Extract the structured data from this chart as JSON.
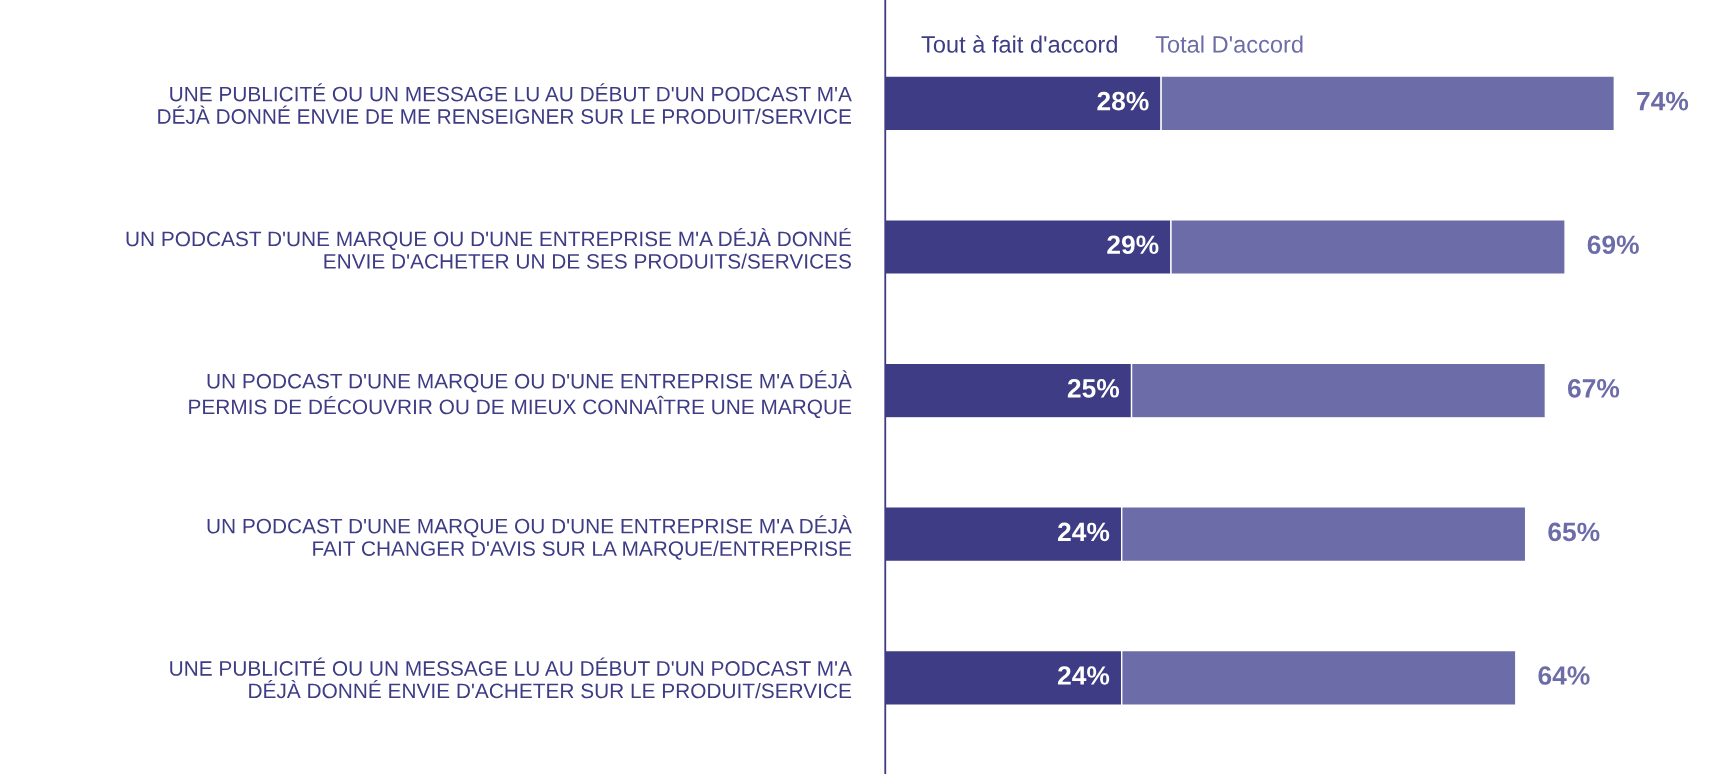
{
  "chart_data": {
    "type": "bar",
    "orientation": "horizontal",
    "stacked": true,
    "totals": [
      "74%",
      "69%",
      "67%",
      "65%",
      "64%"
    ],
    "legend": "top left",
    "tick_labels": "y",
    "grid": false,
    "categories": [
      "UNE PUBLICITÉ OU UN MESSAGE LU AU DÉBUT D'UN PODCAST M'A\nDÉJÀ DONNÉ ENVIE DE ME RENSEIGNER SUR LE PRODUIT/SERVICE",
      "UN PODCAST D'UNE MARQUE OU D'UNE ENTREPRISE M'A DÉJÀ DONNÉ\nENVIE D'ACHETER UN DE SES PRODUITS/SERVICES",
      "UN PODCAST D'UNE MARQUE OU D'UNE ENTREPRISE M'A DÉJÀ\nPERMIS DE DÉCOUVRIR OU DE MIEUX CONNAÎTRE UNE MARQUE",
      "UN PODCAST D'UNE MARQUE OU D'UNE ENTREPRISE M'A DÉJÀ\nFAIT CHANGER D'AVIS SUR LA MARQUE/ENTREPRISE",
      "UNE PUBLICITÉ OU UN MESSAGE LU AU DÉBUT D'UN PODCAST M'A\nDÉJÀ DONNÉ ENVIE D'ACHETER SUR LE PRODUIT/SERVICE"
    ],
    "series": [
      {
        "name": "Tout à fait d'accord",
        "color": "#3d3c84",
        "values": [
          28,
          29,
          25,
          24,
          24
        ],
        "value_labels": [
          "28%",
          "29%",
          "25%",
          "24%",
          "24%"
        ]
      },
      {
        "name": "Total D'accord",
        "color": "#6c6ca8",
        "values": [
          46,
          40,
          42,
          41,
          40
        ]
      }
    ]
  }
}
